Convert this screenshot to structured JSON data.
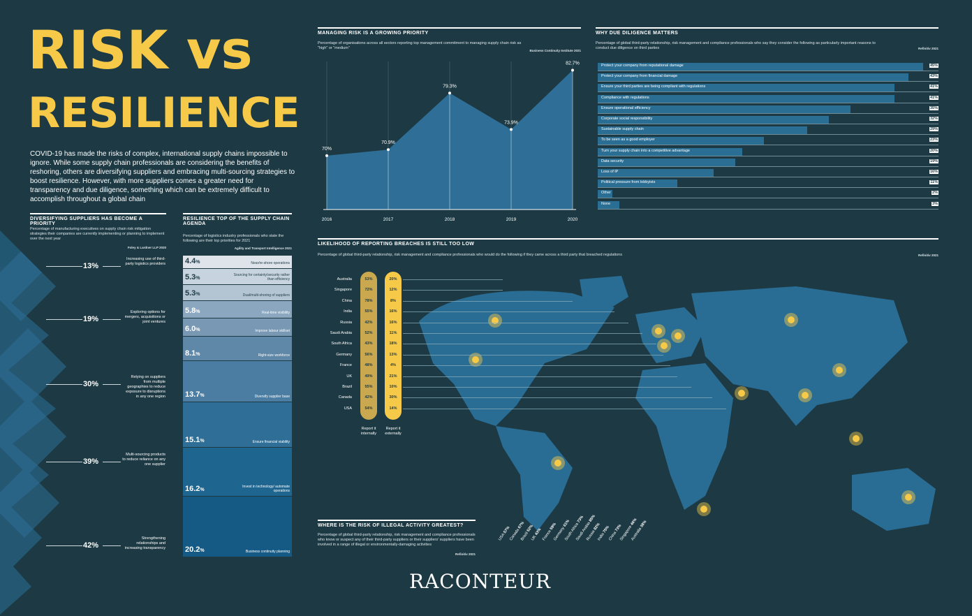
{
  "title": {
    "line1": "RISK vs",
    "line2": "RESILIENCE"
  },
  "intro": "COVID-19 has made the risks of complex, international supply chains impossible to ignore. While some supply chain professionals are considering the benefits of reshoring, others are diversifying suppliers and embracing multi-sourcing strategies to boost resilience. However, with more suppliers comes a greater need for transparency and due diligence, something which can be extremely difficult to accomplish throughout a global chain",
  "brand": "RACONTEUR",
  "colors": {
    "background": "#1d3a44",
    "accent": "#f7c948",
    "bar": "#2b6e94",
    "area": "#2f6f97"
  },
  "diversifying": {
    "title": "DIVERSIFYING SUPPLIERS HAS BECOME A PRIORITY",
    "desc": "Percentage of manufacturing executives on supply chain risk mitigation strategies their companies are currently implementing or planning to implement over the next year",
    "source": "Foley & Lardner LLP 2020",
    "items": [
      {
        "pct": "13%",
        "label": "Increasing use of third-party logistics providers"
      },
      {
        "pct": "19%",
        "label": "Exploring options for mergers, acquisitions or joint ventures"
      },
      {
        "pct": "30%",
        "label": "Relying on suppliers from multiple geographies to reduce exposure to disruptions in any one region"
      },
      {
        "pct": "39%",
        "label": "Multi-sourcing products to reduce reliance on any one supplier"
      },
      {
        "pct": "42%",
        "label": "Strengthening relationships and increasing transparency"
      }
    ]
  },
  "resilience": {
    "title": "RESILIENCE TOP OF THE SUPPLY CHAIN AGENDA",
    "desc": "Percentage of logistics industry professionals who state the following are their top priorities for 2021",
    "source": "Agility and Transport Intelligence 2021",
    "items": [
      {
        "value": 4.4,
        "num": "4.4",
        "unit": "%",
        "label": "Near/re-shore operations",
        "color": "#dfe3ea",
        "text": "#1d3a44"
      },
      {
        "value": 5.3,
        "num": "5.3",
        "unit": "%",
        "label": "Sourcing for certainty/security rather than efficiency",
        "color": "#c7d3de",
        "text": "#1d3a44"
      },
      {
        "value": 5.3,
        "num": "5.3",
        "unit": "%",
        "label": "Dual/multi-shoring of suppliers",
        "color": "#b3c4d3",
        "text": "#1d3a44"
      },
      {
        "value": 5.8,
        "num": "5.8",
        "unit": "%",
        "label": "Real-time visibility",
        "color": "#8aa7bf",
        "text": "#ffffff"
      },
      {
        "value": 6.0,
        "num": "6.0",
        "unit": "%",
        "label": "Improve labour skillset",
        "color": "#7898b3",
        "text": "#ffffff"
      },
      {
        "value": 8.1,
        "num": "8.1",
        "unit": "%",
        "label": "Right-size workforce",
        "color": "#5f87a7",
        "text": "#ffffff"
      },
      {
        "value": 13.7,
        "num": "13.7",
        "unit": "%",
        "label": "Diversify supplier base",
        "color": "#4b7da2",
        "text": "#ffffff"
      },
      {
        "value": 15.1,
        "num": "15.1",
        "unit": "%",
        "label": "Ensure financial viability",
        "color": "#2f6f97",
        "text": "#ffffff"
      },
      {
        "value": 16.2,
        "num": "16.2",
        "unit": "%",
        "label": "Invest in technology/ automate operations",
        "color": "#1e6590",
        "text": "#ffffff"
      },
      {
        "value": 20.2,
        "num": "20.2",
        "unit": "%",
        "label": "Business continuity planning",
        "color": "#145a85",
        "text": "#ffffff"
      }
    ]
  },
  "managing": {
    "title": "MANAGING RISK IS A GROWING PRIORITY",
    "desc": "Percentage of organisations across all sectors reporting top management commitment to managing supply chain risk as \"high\" or \"medium\"",
    "source": "Business Continuity Institute 2021"
  },
  "chart_data": [
    {
      "type": "area",
      "title": "MANAGING RISK IS A GROWING PRIORITY",
      "x": [
        "2016",
        "2017",
        "2018",
        "2019",
        "2020"
      ],
      "values": [
        70,
        70.9,
        79.3,
        73.9,
        82.7
      ],
      "labels": [
        "70%",
        "70.9%",
        "79.3%",
        "73.9%",
        "82.7%"
      ],
      "ylim": [
        62,
        84
      ]
    },
    {
      "type": "bar",
      "title": "WHY DUE DILIGENCE MATTERS",
      "categories": [
        "Protect your company from reputational damage",
        "Protect your company from financial damage",
        "Ensure your third parties are being compliant with regulations",
        "Compliance with regulations",
        "Ensure operational efficiency",
        "Corporate social responsibility",
        "Sustainable supply chain",
        "To be seen as a good employer",
        "Turn your supply chain into a competitive advantage",
        "Data security",
        "Loss of IP",
        "Political pressure from lobbyists",
        "Other",
        "None"
      ],
      "values": [
        45,
        43,
        41,
        41,
        35,
        32,
        29,
        23,
        20,
        19,
        16,
        11,
        2,
        3
      ],
      "labels": [
        "45%",
        "43%",
        "41%",
        "41%",
        "35%",
        "32%",
        "29%",
        "23%",
        "20%",
        "19%",
        "16%",
        "11%",
        "2%",
        "3%"
      ],
      "xlim": [
        0,
        45
      ]
    },
    {
      "type": "table",
      "title": "LIKELIHOOD OF REPORTING BREACHES IS STILL TOO LOW",
      "categories": [
        "Australia",
        "Singapore",
        "China",
        "India",
        "Russia",
        "Saudi Arabia",
        "South Africa",
        "Germany",
        "France",
        "UK",
        "Brazil",
        "Canada",
        "USA"
      ],
      "series": [
        {
          "name": "Report it internally",
          "values": [
            "53%",
            "72%",
            "78%",
            "55%",
            "42%",
            "52%",
            "43%",
            "56%",
            "48%",
            "49%",
            "55%",
            "42%",
            "54%"
          ]
        },
        {
          "name": "Report it externally",
          "values": [
            "20%",
            "12%",
            "8%",
            "16%",
            "16%",
            "11%",
            "18%",
            "13%",
            "4%",
            "21%",
            "10%",
            "30%",
            "14%"
          ]
        }
      ]
    },
    {
      "type": "bar",
      "title": "WHERE IS THE RISK OF ILLEGAL ACTIVITY GREATEST?",
      "categories": [
        "USA",
        "Canada",
        "Brazil",
        "UK",
        "France",
        "Germany",
        "South Africa",
        "Saudi Arabia",
        "Russia",
        "India",
        "China",
        "Singapore",
        "Australia"
      ],
      "values": [
        57,
        67,
        52,
        43,
        59,
        61,
        73,
        85,
        82,
        75,
        73,
        46,
        38
      ],
      "labels": [
        "57%",
        "67%",
        "52%",
        "43%",
        "59%",
        "61%",
        "73%",
        "85%",
        "82%",
        "75%",
        "73%",
        "46%",
        "38%"
      ]
    }
  ],
  "due": {
    "title": "WHY DUE DILIGENCE MATTERS",
    "desc": "Percentage of global third-party relationship, risk management and compliance professionals who say they consider the following as particularly important reasons to conduct due diligence on third parties",
    "source": "Refinitiv 2021"
  },
  "breaches": {
    "title": "LIKELIHOOD OF REPORTING BREACHES IS STILL TOO LOW",
    "desc": "Percentage of global third-party relationship, risk management and compliance professionals who would do the following if they came across a third party that breached regulations",
    "source": "Refinitiv 2021",
    "internal_label": "Report it internally",
    "external_label": "Report it externally"
  },
  "illegal": {
    "title": "WHERE IS THE RISK OF ILLEGAL ACTIVITY GREATEST?",
    "desc": "Percentage of global third-party relationship, risk management and compliance professionals who know or suspect any of their third-party suppliers or their suppliers' suppliers have been involved in a range of illegal or environmentally-damaging activities",
    "source": "Refinitiv 2021"
  }
}
